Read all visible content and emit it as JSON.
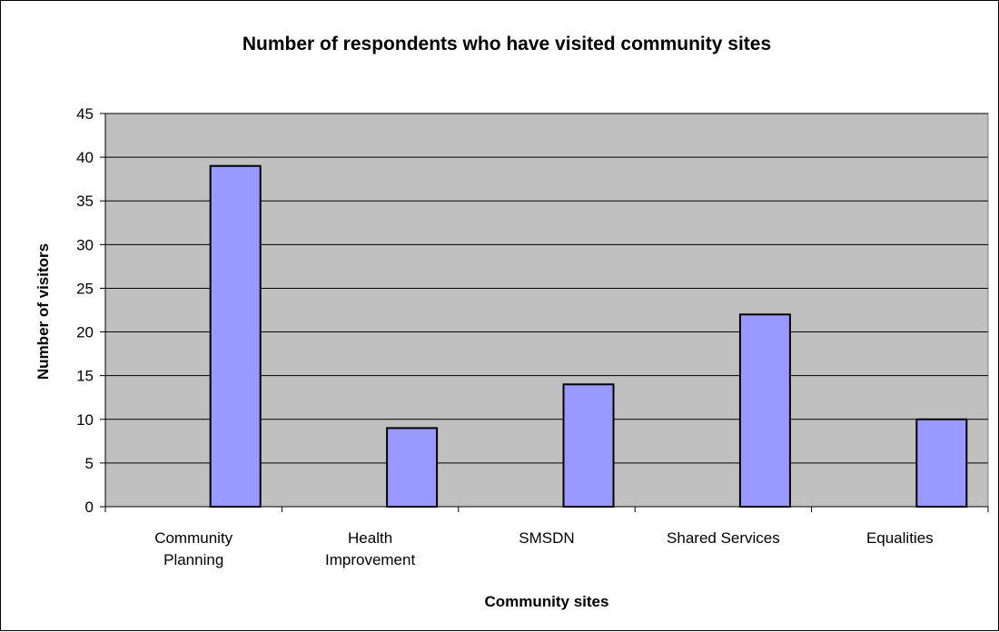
{
  "chart_data": {
    "type": "bar",
    "title": "Number of respondents who have visited community sites",
    "xlabel": "Community sites",
    "ylabel": "Number of visitors",
    "categories": [
      [
        "Community",
        "Planning"
      ],
      [
        "Health",
        "Improvement"
      ],
      [
        "SMSDN"
      ],
      [
        "Shared Services"
      ],
      [
        "Equalities"
      ]
    ],
    "values": [
      39,
      9,
      14,
      22,
      10
    ],
    "ylim": [
      0,
      45
    ],
    "ytick_step": 5,
    "grid": true,
    "legend": "none",
    "colors": {
      "bar_fill": "#9999ff",
      "bar_stroke": "#000000",
      "plot_background": "#c0c0c0",
      "gridline": "#000000"
    }
  }
}
